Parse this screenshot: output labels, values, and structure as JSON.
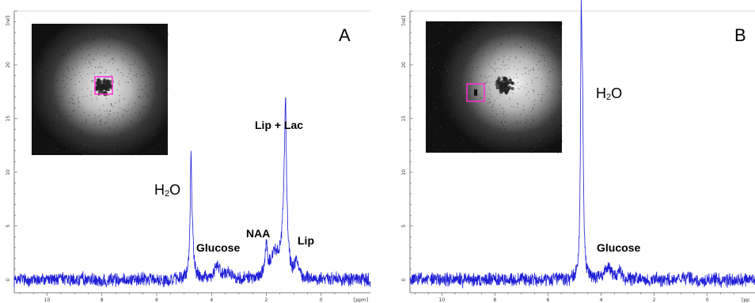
{
  "chart_data": [
    {
      "type": "line",
      "panel_label": "A",
      "ylabel": "[rel]",
      "xlabel": "[ppm]",
      "x_reversed": true,
      "xlim": [
        11.2,
        -1.8
      ],
      "ylim": [
        -1.2,
        25
      ],
      "xticks": [
        10,
        8,
        6,
        4,
        2,
        0
      ],
      "yticks": [
        0,
        5,
        10,
        15,
        20
      ],
      "line_color": "#1f1fd6",
      "peaks": [
        {
          "ppm": 4.75,
          "height": 9.6,
          "width": 0.035
        },
        {
          "ppm": 4.7,
          "height": 3.0,
          "width": 0.06
        },
        {
          "ppm": 3.8,
          "height": 1.2,
          "width": 0.12
        },
        {
          "ppm": 3.4,
          "height": 0.7,
          "width": 0.12
        },
        {
          "ppm": 2.0,
          "height": 2.7,
          "width": 0.05
        },
        {
          "ppm": 1.7,
          "height": 2.2,
          "width": 0.18
        },
        {
          "ppm": 1.3,
          "height": 13.0,
          "width": 0.045
        },
        {
          "ppm": 1.35,
          "height": 4.0,
          "width": 0.12
        },
        {
          "ppm": 0.9,
          "height": 1.8,
          "width": 0.06
        }
      ],
      "noise_amplitude": 0.55,
      "annotations": [
        {
          "id": "h2o",
          "text": "H2O"
        },
        {
          "id": "glucose",
          "text": "Glucose"
        },
        {
          "id": "naa",
          "text": "NAA"
        },
        {
          "id": "liplac",
          "text": "Lip + Lac"
        },
        {
          "id": "lip",
          "text": "Lip"
        }
      ],
      "roi_marker": "tumor-center"
    },
    {
      "type": "line",
      "panel_label": "B",
      "ylabel": "[rel]",
      "xlabel": "[pp",
      "x_reversed": true,
      "xlim": [
        11.2,
        -1.8
      ],
      "ylim": [
        -1.2,
        25
      ],
      "xticks": [
        10,
        8,
        6,
        4,
        2,
        0
      ],
      "yticks": [
        0,
        5,
        10,
        15,
        20
      ],
      "line_color": "#1f1fd6",
      "peaks": [
        {
          "ppm": 4.75,
          "height": 19.7,
          "width": 0.03
        },
        {
          "ppm": 4.7,
          "height": 15.0,
          "width": 0.04
        },
        {
          "ppm": 3.7,
          "height": 1.2,
          "width": 0.12
        },
        {
          "ppm": 3.3,
          "height": 0.8,
          "width": 0.12
        }
      ],
      "noise_amplitude": 0.55,
      "annotations": [
        {
          "id": "h2o",
          "text": "H2O"
        },
        {
          "id": "glucose",
          "text": "Glucose"
        }
      ],
      "roi_marker": "normal-tissue"
    }
  ]
}
